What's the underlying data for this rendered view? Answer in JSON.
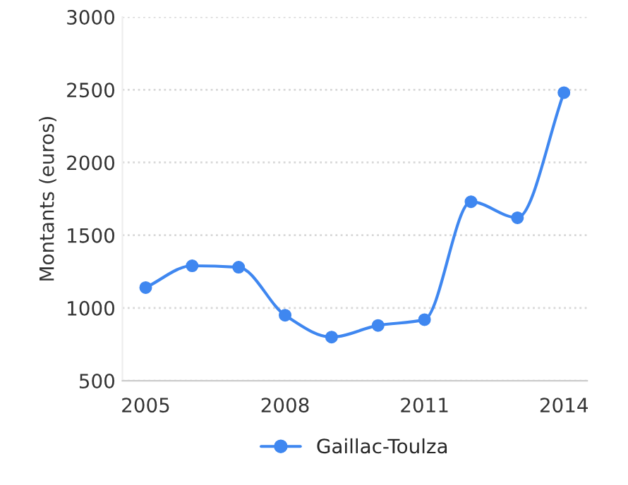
{
  "chart_data": {
    "type": "line",
    "ylabel": "Montants (euros)",
    "x": [
      2005,
      2006,
      2007,
      2008,
      2009,
      2010,
      2011,
      2012,
      2013,
      2014
    ],
    "series": [
      {
        "name": "Gaillac-Toulza",
        "color": "#3f87f0",
        "values": [
          1140,
          1290,
          1280,
          950,
          800,
          880,
          920,
          1730,
          1620,
          2480
        ]
      }
    ],
    "xlim": [
      2004.5,
      2014.5
    ],
    "xticks": [
      2005,
      2008,
      2011,
      2014
    ],
    "ylim": [
      500,
      3000
    ],
    "yticks": [
      500,
      1000,
      1500,
      2000,
      2500,
      3000
    ],
    "grid": "y",
    "legend": "bottom",
    "marker": "circle",
    "line_style": "solid"
  }
}
